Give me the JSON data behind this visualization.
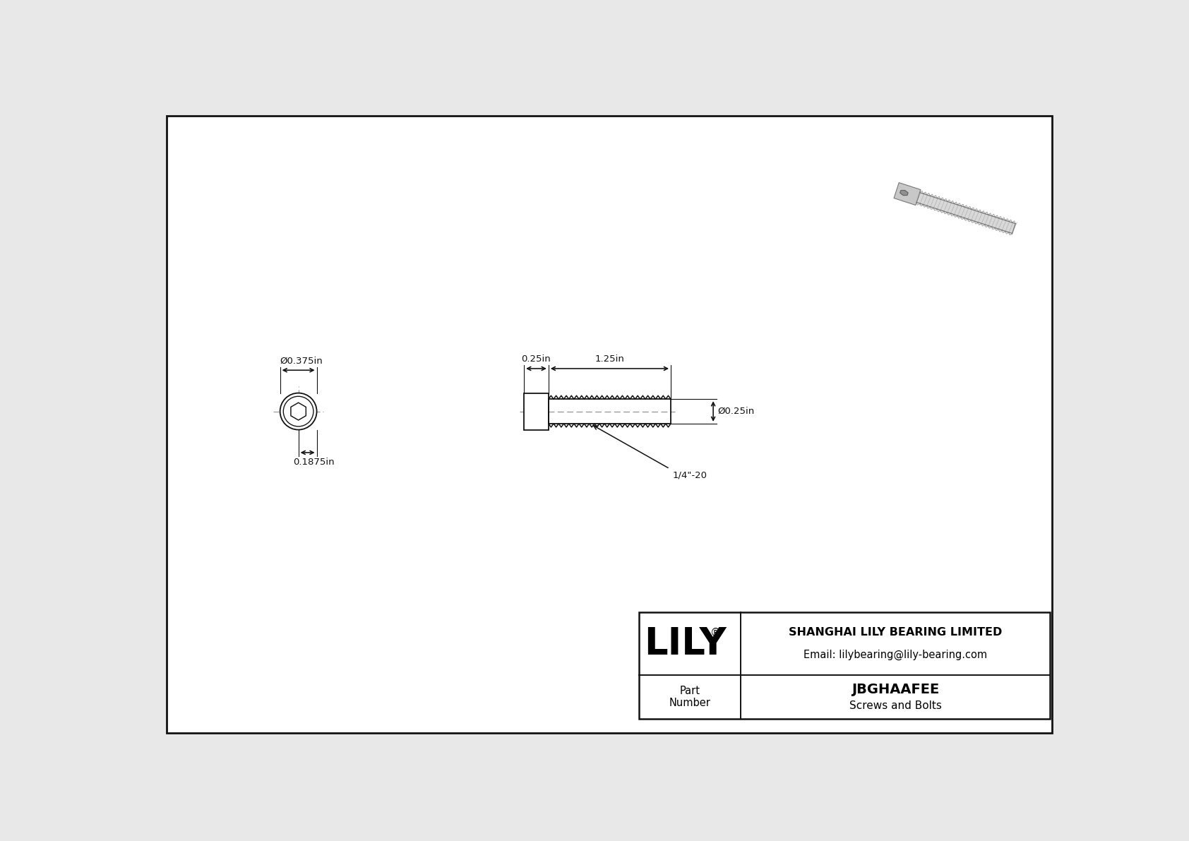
{
  "bg_color": "#e8e8e8",
  "drawing_bg": "#ffffff",
  "border_color": "#111111",
  "line_color": "#111111",
  "title_company": "SHANGHAI LILY BEARING LIMITED",
  "title_email": "Email: lilybearing@lily-bearing.com",
  "part_number": "JBGHAAFEE",
  "part_category": "Screws and Bolts",
  "part_label": "Part\nNumber",
  "brand": "LILY",
  "dim_head_diameter": "Ø0.375in",
  "dim_head_length": "0.1875in",
  "dim_shaft_length": "1.25in",
  "dim_socket_length": "0.25in",
  "dim_shaft_diameter": "Ø0.25in",
  "dim_thread": "1/4\"-20",
  "dim_fontsize": 9.5,
  "brand_fontsize": 38,
  "table_fontsize": 10
}
